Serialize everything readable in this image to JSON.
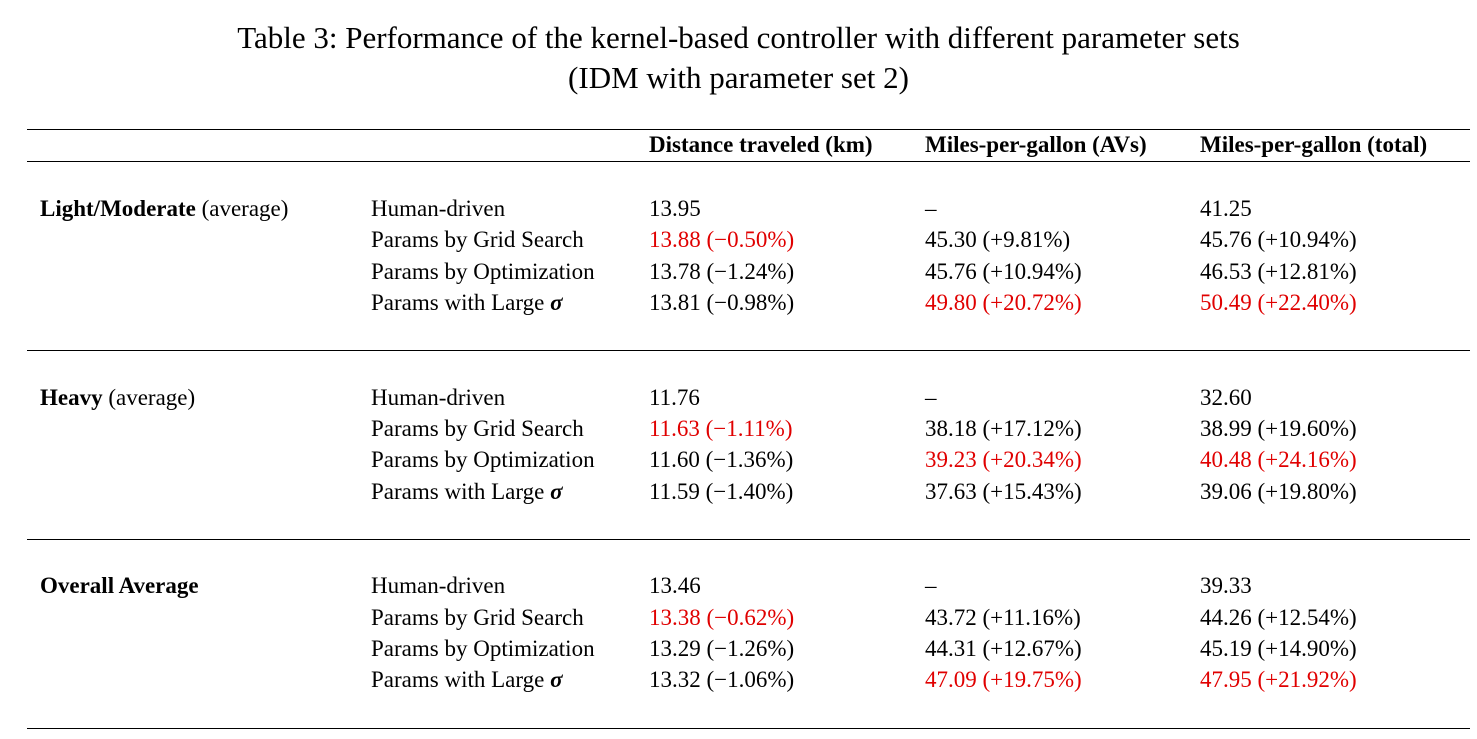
{
  "caption": {
    "line1": "Table 3: Performance of the kernel-based controller with different parameter sets",
    "line2": "(IDM with parameter set 2)"
  },
  "headers": [
    "Distance traveled (km)",
    "Miles-per-gallon (AVs)",
    "Miles-per-gallon (total)"
  ],
  "colors": {
    "highlight": "#e00000",
    "text": "#000000"
  },
  "groups": [
    {
      "name": "Light/Moderate",
      "suffix": "(average)",
      "rows": [
        {
          "method": "Human-driven",
          "dist": "13.95",
          "mpg_av": "–",
          "mpg_total": "41.25"
        },
        {
          "method": "Params by Grid Search",
          "dist": "13.88 (−0.50%)",
          "mpg_av": "45.30 (+9.81%)",
          "mpg_total": "45.76 (+10.94%)"
        },
        {
          "method": "Params by Optimization",
          "dist": "13.78 (−1.24%)",
          "mpg_av": "45.76 (+10.94%)",
          "mpg_total": "46.53 (+12.81%)"
        },
        {
          "method": "Params with Large",
          "sigma": "σ",
          "dist": "13.81 (−0.98%)",
          "mpg_av": "49.80 (+20.72%)",
          "mpg_total": "50.49 (+22.40%)"
        }
      ]
    },
    {
      "name": "Heavy",
      "suffix": "(average)",
      "rows": [
        {
          "method": "Human-driven",
          "dist": "11.76",
          "mpg_av": "–",
          "mpg_total": "32.60"
        },
        {
          "method": "Params by Grid Search",
          "dist": "11.63 (−1.11%)",
          "mpg_av": "38.18 (+17.12%)",
          "mpg_total": "38.99 (+19.60%)"
        },
        {
          "method": "Params by Optimization",
          "dist": "11.60 (−1.36%)",
          "mpg_av": "39.23 (+20.34%)",
          "mpg_total": "40.48 (+24.16%)"
        },
        {
          "method": "Params with Large",
          "sigma": "σ",
          "dist": "11.59 (−1.40%)",
          "mpg_av": "37.63 (+15.43%)",
          "mpg_total": "39.06 (+19.80%)"
        }
      ]
    },
    {
      "name": "Overall Average",
      "suffix": "",
      "rows": [
        {
          "method": "Human-driven",
          "dist": "13.46",
          "mpg_av": "–",
          "mpg_total": "39.33"
        },
        {
          "method": "Params by Grid Search",
          "dist": "13.38 (−0.62%)",
          "mpg_av": "43.72 (+11.16%)",
          "mpg_total": "44.26 (+12.54%)"
        },
        {
          "method": "Params by Optimization",
          "dist": "13.29 (−1.26%)",
          "mpg_av": "44.31 (+12.67%)",
          "mpg_total": "45.19 (+14.90%)"
        },
        {
          "method": "Params with Large",
          "sigma": "σ",
          "dist": "13.32 (−1.06%)",
          "mpg_av": "47.09 (+19.75%)",
          "mpg_total": "47.95 (+21.92%)"
        }
      ]
    }
  ]
}
